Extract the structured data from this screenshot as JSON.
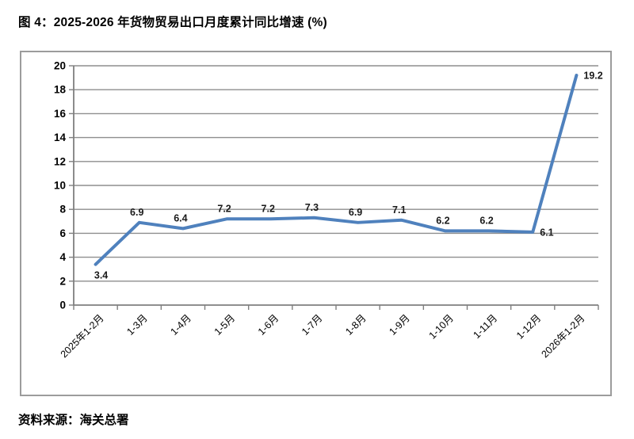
{
  "figure": {
    "title": "图 4：2025-2026 年货物贸易出口月度累计同比增速 (%)",
    "source_note": "资料来源：海关总署"
  },
  "chart_data": {
    "type": "line",
    "title": "图 4：2025-2026 年货物贸易出口月度累计同比增速 (%)",
    "xlabel": "",
    "ylabel": "",
    "categories": [
      "2025年1-2月",
      "1-3月",
      "1-4月",
      "1-5月",
      "1-6月",
      "1-7月",
      "1-8月",
      "1-9月",
      "1-10月",
      "1-11月",
      "1-12月",
      "2026年1-2月"
    ],
    "values": [
      3.4,
      6.9,
      6.4,
      7.2,
      7.2,
      7.3,
      6.9,
      7.1,
      6.2,
      6.2,
      6.1,
      19.2
    ],
    "ylim": [
      0,
      20
    ],
    "ytick_step": 2,
    "grid": true,
    "legend": false,
    "data_labels_shown": true,
    "label_placement": [
      "below",
      "above",
      "above",
      "above",
      "above",
      "above",
      "above",
      "above",
      "above",
      "above",
      "right",
      "right"
    ],
    "line_color": "#4f81bd",
    "grid_color": "#8e8e8e",
    "axis_color": "#7f7f7f",
    "tick_label_color": "#000000",
    "data_label_color": "#1a1a1a",
    "frame_border_color": "#9c9c9c"
  }
}
